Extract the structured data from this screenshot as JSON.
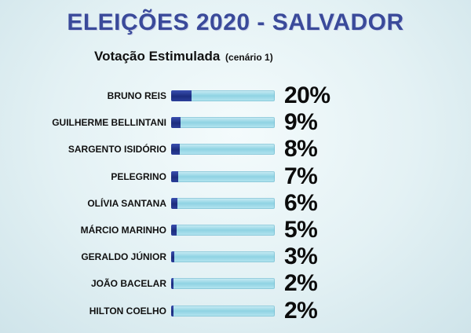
{
  "chart_data": {
    "type": "bar",
    "orientation": "horizontal",
    "title": "ELEIÇÕES 2020 - SALVADOR",
    "subtitle": "Votação Estimulada",
    "subtitle_note": "(cenário 1)",
    "categories": [
      "BRUNO REIS",
      "GUILHERME BELLINTANI",
      "SARGENTO ISIDÓRIO",
      "PELEGRINO",
      "OLÍVIA SANTANA",
      "MÁRCIO MARINHO",
      "GERALDO JÚNIOR",
      "JOÃO BACELAR",
      "HILTON COELHO"
    ],
    "values": [
      20,
      9,
      8,
      7,
      6,
      5,
      3,
      2,
      2
    ],
    "value_labels": [
      "20%",
      "9%",
      "8%",
      "7%",
      "6%",
      "5%",
      "3%",
      "2%",
      "2%"
    ],
    "unit": "%",
    "xlim": [
      0,
      100
    ],
    "grid": false,
    "colors": {
      "fill": "#1c2d7e",
      "track": "#8fd3e3",
      "title": "#3a4a9a"
    }
  }
}
